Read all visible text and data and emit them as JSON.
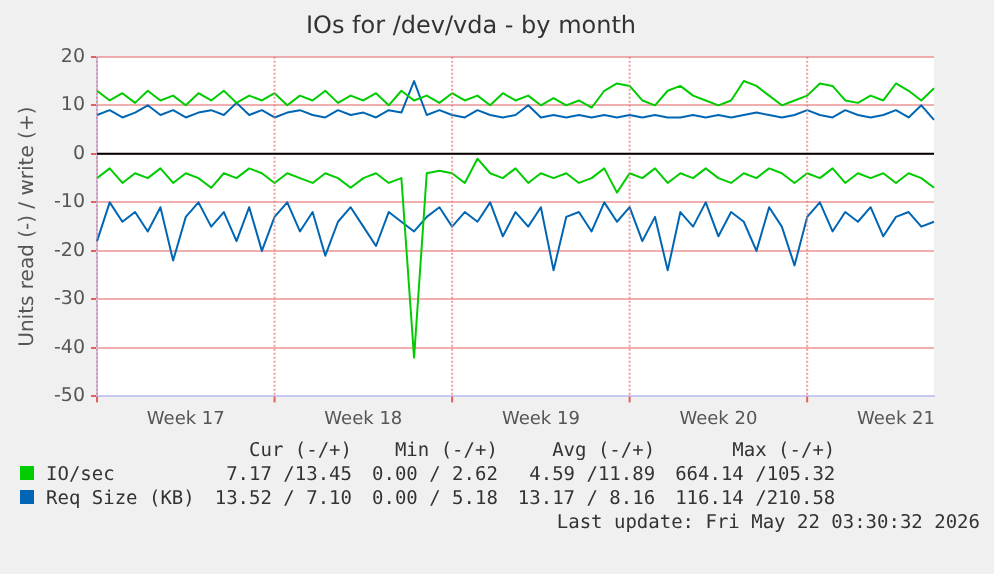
{
  "chart_data": {
    "type": "line",
    "title": "IOs for /dev/vda - by month",
    "ylabel": "Units read (-) / write (+)",
    "categories": [
      null,
      null,
      null,
      null,
      null,
      null,
      null,
      "Week 17",
      null,
      null,
      null,
      null,
      null,
      null,
      null,
      null,
      null,
      null,
      null,
      null,
      null,
      "Week 18",
      null,
      null,
      null,
      null,
      null,
      null,
      null,
      null,
      null,
      null,
      null,
      null,
      null,
      "Week 19",
      null,
      null,
      null,
      null,
      null,
      null,
      null,
      null,
      null,
      null,
      null,
      null,
      null,
      "Week 20",
      null,
      null,
      null,
      null,
      null,
      null,
      null,
      null,
      null,
      null,
      null,
      null,
      null,
      "Week 21",
      null,
      null,
      null
    ],
    "series": [
      {
        "name": "IO/sec",
        "color": "#00cc00",
        "values": [
          13,
          11,
          12.5,
          10.5,
          13,
          11,
          12,
          10,
          12.5,
          11,
          13,
          10.5,
          12,
          11,
          12.5,
          10,
          12,
          11,
          13,
          10.5,
          12,
          11,
          12.5,
          10,
          13,
          11,
          12,
          10.5,
          12.5,
          11,
          12,
          10,
          12.5,
          11,
          12,
          10,
          11.5,
          10,
          11,
          9.5,
          13,
          14.5,
          14,
          11,
          10,
          13,
          14,
          12,
          11,
          10,
          11,
          15,
          14,
          12,
          10,
          11,
          12,
          14.5,
          14,
          11,
          10.5,
          12,
          11,
          14.5,
          13,
          11,
          13.5
        ]
      },
      {
        "color": "#00cc00",
        "values": [
          -5,
          -3,
          -6,
          -4,
          -5,
          -3,
          -6,
          -4,
          -5,
          -7,
          -4,
          -5,
          -3,
          -4,
          -6,
          -4,
          -5,
          -6,
          -4,
          -5,
          -7,
          -5,
          -4,
          -6,
          -5,
          -42,
          -4,
          -3.5,
          -4,
          -6,
          -1,
          -4,
          -5,
          -3,
          -6,
          -4,
          -5,
          -4,
          -6,
          -5,
          -3,
          -8,
          -4,
          -5,
          -3,
          -6,
          -4,
          -5,
          -3,
          -5,
          -6,
          -4,
          -5,
          -3,
          -4,
          -6,
          -4,
          -5,
          -3,
          -6,
          -4,
          -5,
          -4,
          -6,
          -4,
          -5,
          -7
        ]
      },
      {
        "name": "Req Size (KB)",
        "color": "#0066b3",
        "values": [
          8,
          9,
          7.5,
          8.5,
          10,
          8,
          9,
          7.5,
          8.5,
          9,
          8,
          10.5,
          8,
          9,
          7.5,
          8.5,
          9,
          8,
          7.5,
          9,
          8,
          8.5,
          7.5,
          9,
          8.5,
          15,
          8,
          9,
          8,
          7.5,
          9,
          8,
          7.5,
          8,
          10,
          7.5,
          8,
          7.5,
          8,
          7.5,
          8,
          7.5,
          8,
          7.5,
          8,
          7.5,
          7.5,
          8,
          7.5,
          8,
          7.5,
          8,
          8.5,
          8,
          7.5,
          8,
          9,
          8,
          7.5,
          9,
          8,
          7.5,
          8,
          9,
          7.5,
          10,
          7
        ]
      },
      {
        "color": "#0066b3",
        "values": [
          -18,
          -10,
          -14,
          -12,
          -16,
          -11,
          -22,
          -13,
          -10,
          -15,
          -12,
          -18,
          -11,
          -20,
          -13,
          -10,
          -16,
          -12,
          -21,
          -14,
          -11,
          -15,
          -19,
          -12,
          -14,
          -16,
          -13,
          -11,
          -15,
          -12,
          -14,
          -10,
          -17,
          -12,
          -15,
          -11,
          -24,
          -13,
          -12,
          -16,
          -10,
          -14,
          -11,
          -18,
          -13,
          -24,
          -12,
          -15,
          -10,
          -17,
          -12,
          -14,
          -20,
          -11,
          -15,
          -23,
          -13,
          -10,
          -16,
          -12,
          -14,
          -11,
          -17,
          -13,
          -12,
          -15,
          -14
        ]
      }
    ],
    "ylim": [
      -50,
      20
    ],
    "yticks": [
      -50,
      -40,
      -30,
      -20,
      -10,
      0,
      10,
      20
    ],
    "ref_lines": [
      {
        "axis": "y",
        "value": 0,
        "color": "#000000"
      }
    ],
    "grid": true,
    "legend": "bottom",
    "marker": "none",
    "line_style": "solid",
    "annotations": [
      "Cur (-/+)",
      "Min (-/+)",
      "Avg (-/+)",
      "Max (-/+)",
      "7.17 /13.45",
      "0.00 / 2.62",
      "4.59 /11.89",
      "664.14 /105.32",
      "13.52 / 7.10",
      "0.00 / 5.18",
      "13.17 / 8.16",
      "116.14 /210.58",
      "Last update: Fri May 22 03:30:32 2026"
    ]
  }
}
